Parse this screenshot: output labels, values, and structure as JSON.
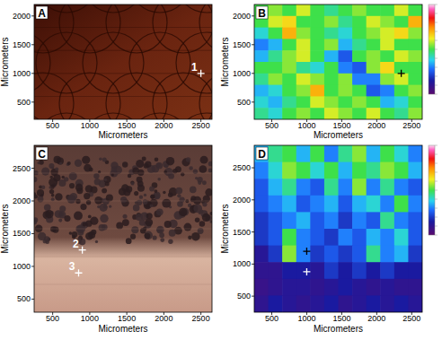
{
  "chart_data": [
    {
      "type": "image",
      "label": "A",
      "xlabel": "Micrometers",
      "ylabel": "Micrometers",
      "xlim": [
        250,
        2650
      ],
      "ylim": [
        200,
        2200
      ],
      "xticks": [
        500,
        1000,
        1500,
        2000,
        2500
      ],
      "yticks": [
        500,
        1000,
        1500,
        2000
      ],
      "annotations": [
        {
          "x": 2500,
          "y": 1000,
          "label": "1",
          "color": "#ffffff"
        }
      ]
    },
    {
      "type": "heatmap",
      "label": "B",
      "xlabel": "Micrometers",
      "ylabel": "Micrometers",
      "xlim": [
        250,
        2650
      ],
      "ylim": [
        200,
        2200
      ],
      "xticks": [
        500,
        1000,
        1500,
        2000,
        2500
      ],
      "yticks": [
        500,
        1000,
        1500,
        2000
      ],
      "color_range": [
        0,
        1
      ],
      "cells": [
        [
          0.5,
          0.55,
          0.5,
          0.6,
          0.5,
          0.45,
          0.5,
          0.55,
          0.5,
          0.5,
          0.6,
          0.5
        ],
        [
          0.5,
          0.6,
          0.65,
          0.5,
          0.5,
          0.55,
          0.45,
          0.5,
          0.6,
          0.55,
          0.5,
          0.7
        ],
        [
          0.4,
          0.5,
          0.7,
          0.55,
          0.5,
          0.45,
          0.4,
          0.5,
          0.55,
          0.6,
          0.65,
          0.55
        ],
        [
          0.3,
          0.35,
          0.5,
          0.6,
          0.5,
          0.55,
          0.35,
          0.45,
          0.5,
          0.6,
          0.5,
          0.5
        ],
        [
          0.35,
          0.45,
          0.55,
          0.6,
          0.5,
          0.35,
          0.25,
          0.5,
          0.55,
          0.5,
          0.6,
          0.55
        ],
        [
          0.5,
          0.5,
          0.55,
          0.45,
          0.4,
          0.5,
          0.3,
          0.25,
          0.55,
          0.65,
          0.5,
          0.5
        ],
        [
          0.45,
          0.55,
          0.5,
          0.6,
          0.55,
          0.5,
          0.55,
          0.3,
          0.3,
          0.55,
          0.6,
          0.5
        ],
        [
          0.35,
          0.4,
          0.5,
          0.55,
          0.7,
          0.5,
          0.55,
          0.5,
          0.25,
          0.3,
          0.5,
          0.55
        ],
        [
          0.4,
          0.35,
          0.45,
          0.5,
          0.6,
          0.55,
          0.5,
          0.55,
          0.5,
          0.35,
          0.4,
          0.5
        ],
        [
          0.45,
          0.4,
          0.5,
          0.55,
          0.5,
          0.6,
          0.55,
          0.5,
          0.6,
          0.5,
          0.45,
          0.55
        ]
      ],
      "annotations": [
        {
          "x": 2350,
          "y": 1000,
          "color": "#000000"
        }
      ]
    },
    {
      "type": "image",
      "label": "C",
      "xlabel": "Micrometers",
      "ylabel": "Micrometers",
      "xlim": [
        250,
        2650
      ],
      "ylim": [
        300,
        2850
      ],
      "xticks": [
        500,
        1000,
        1500,
        2000,
        2500
      ],
      "yticks": [
        500,
        1000,
        1500,
        2000,
        2500
      ],
      "annotations": [
        {
          "x": 900,
          "y": 1250,
          "label": "2",
          "color": "#ffffff"
        },
        {
          "x": 850,
          "y": 900,
          "label": "3",
          "color": "#ffffff"
        }
      ]
    },
    {
      "type": "heatmap",
      "label": "D",
      "xlabel": "Micrometers",
      "ylabel": "Micrometers",
      "xlim": [
        250,
        2650
      ],
      "ylim": [
        250,
        2850
      ],
      "xticks": [
        500,
        1000,
        1500,
        2000,
        2500
      ],
      "yticks": [
        500,
        1000,
        1500,
        2000,
        2500
      ],
      "color_range": [
        0,
        1
      ],
      "cells": [
        [
          0.35,
          0.45,
          0.5,
          0.35,
          0.5,
          0.3,
          0.45,
          0.55,
          0.35,
          0.5,
          0.4,
          0.3
        ],
        [
          0.3,
          0.4,
          0.55,
          0.5,
          0.4,
          0.5,
          0.35,
          0.5,
          0.45,
          0.55,
          0.5,
          0.35
        ],
        [
          0.25,
          0.35,
          0.45,
          0.3,
          0.25,
          0.45,
          0.3,
          0.55,
          0.3,
          0.45,
          0.3,
          0.25
        ],
        [
          0.25,
          0.3,
          0.35,
          0.25,
          0.3,
          0.35,
          0.25,
          0.35,
          0.4,
          0.3,
          0.5,
          0.3
        ],
        [
          0.2,
          0.25,
          0.3,
          0.35,
          0.25,
          0.3,
          0.2,
          0.3,
          0.25,
          0.45,
          0.3,
          0.25
        ],
        [
          0.2,
          0.25,
          0.5,
          0.3,
          0.25,
          0.2,
          0.3,
          0.25,
          0.35,
          0.3,
          0.4,
          0.25
        ],
        [
          0.12,
          0.2,
          0.55,
          0.3,
          0.2,
          0.25,
          0.2,
          0.25,
          0.45,
          0.3,
          0.35,
          0.2
        ],
        [
          0.1,
          0.1,
          0.15,
          0.15,
          0.12,
          0.2,
          0.15,
          0.2,
          0.15,
          0.2,
          0.15,
          0.15
        ],
        [
          0.08,
          0.1,
          0.12,
          0.12,
          0.1,
          0.12,
          0.15,
          0.12,
          0.1,
          0.12,
          0.1,
          0.1
        ],
        [
          0.1,
          0.15,
          0.12,
          0.1,
          0.12,
          0.15,
          0.1,
          0.12,
          0.15,
          0.12,
          0.15,
          0.12
        ]
      ],
      "annotations": [
        {
          "x": 1000,
          "y": 1200,
          "color": "#000000"
        },
        {
          "x": 1000,
          "y": 880,
          "color": "#ffffff"
        }
      ]
    }
  ]
}
